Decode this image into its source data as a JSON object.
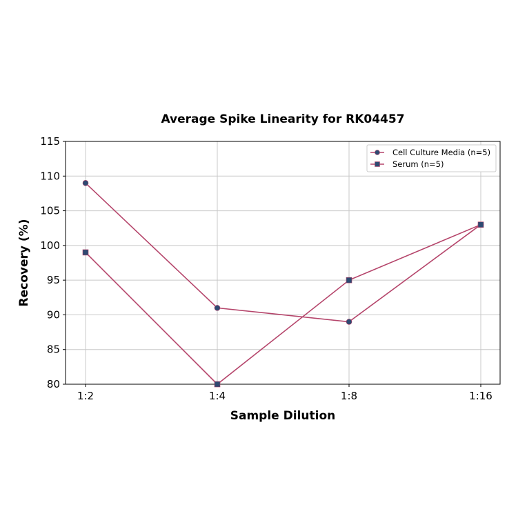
{
  "chart_data": {
    "type": "line",
    "title": "Average Spike Linearity for RK04457",
    "xlabel": "Sample Dilution",
    "ylabel": "Recovery (%)",
    "categories": [
      "1:2",
      "1:4",
      "1:8",
      "1:16"
    ],
    "yticks": [
      "80",
      "85",
      "90",
      "95",
      "100",
      "105",
      "110",
      "115"
    ],
    "ylim": [
      80,
      115
    ],
    "grid": true,
    "legend_position": "upper right",
    "series": [
      {
        "name": "Cell Culture Media (n=5)",
        "marker": "circle",
        "values": [
          109,
          91,
          89,
          103
        ]
      },
      {
        "name": "Serum (n=5)",
        "marker": "square",
        "values": [
          99,
          80,
          95,
          103
        ]
      }
    ],
    "colors": {
      "line": "#b5456b",
      "marker": "#2e4a72"
    }
  }
}
